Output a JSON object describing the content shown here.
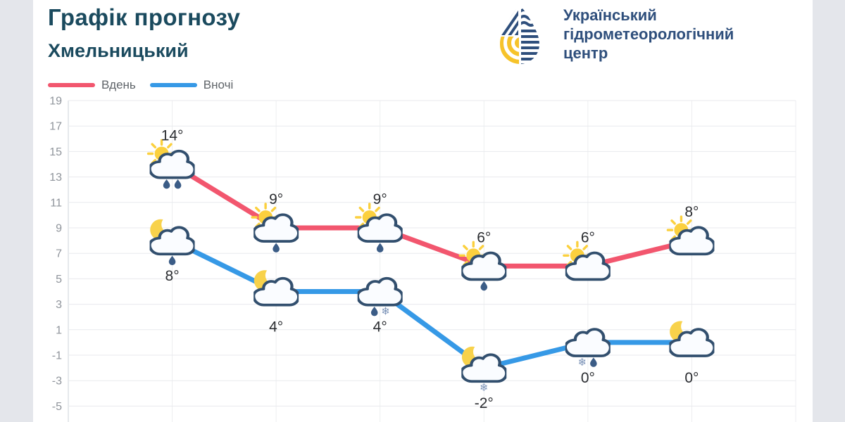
{
  "header": {
    "title": "Графік прогнозу",
    "city": "Хмельницький",
    "title_color": "#1a4a5e"
  },
  "brand": {
    "line1": "Український",
    "line2": "гідрометеорологічний",
    "line3": "центр",
    "text_color": "#2f4f7c",
    "logo_navy": "#2f4f7c",
    "logo_yellow": "#f6c32a"
  },
  "legend": {
    "items": [
      {
        "label": "Вдень",
        "color": "#f2566e"
      },
      {
        "label": "Вночі",
        "color": "#3699e6"
      }
    ]
  },
  "chart_data": {
    "type": "line",
    "title": "Графік прогнозу — Хмельницький",
    "xlabel": "",
    "ylabel": "",
    "ylim": [
      -5,
      19
    ],
    "y_ticks": [
      19,
      17,
      15,
      13,
      11,
      9,
      7,
      5,
      3,
      1,
      -1,
      -3,
      -5
    ],
    "grid": true,
    "legend_position": "top-left",
    "x_count": 6,
    "series": [
      {
        "name": "Вдень",
        "color": "#f2566e",
        "values": [
          14,
          9,
          9,
          6,
          6,
          8
        ],
        "labels": [
          "14°",
          "9°",
          "9°",
          "6°",
          "6°",
          "8°"
        ],
        "label_position": "above",
        "icons": [
          {
            "sky": "sun",
            "precip": [
              "rain",
              "rain"
            ]
          },
          {
            "sky": "sun",
            "precip": [
              "rain"
            ]
          },
          {
            "sky": "sun",
            "precip": [
              "rain"
            ]
          },
          {
            "sky": "sun",
            "precip": [
              "rain"
            ]
          },
          {
            "sky": "sun",
            "precip": []
          },
          {
            "sky": "sun",
            "precip": []
          }
        ]
      },
      {
        "name": "Вночі",
        "color": "#3699e6",
        "values": [
          8,
          4,
          4,
          -2,
          0,
          0
        ],
        "labels": [
          "8°",
          "4°",
          "4°",
          "-2°",
          "0°",
          "0°"
        ],
        "label_position": "below",
        "icons": [
          {
            "sky": "moon",
            "precip": [
              "rain"
            ]
          },
          {
            "sky": "moon",
            "precip": []
          },
          {
            "sky": "none",
            "precip": [
              "rain",
              "snow"
            ]
          },
          {
            "sky": "moon",
            "precip": [
              "snow"
            ]
          },
          {
            "sky": "none",
            "precip": [
              "snow",
              "rain"
            ]
          },
          {
            "sky": "moon",
            "precip": []
          }
        ]
      }
    ],
    "icon_colors": {
      "cloud_outline": "#324f6e",
      "cloud_fill": "#fafcff",
      "sun": "#fbd03e",
      "moon": "#f8d24b",
      "rain": "#3b5c86",
      "snow": "#7991b6"
    }
  }
}
